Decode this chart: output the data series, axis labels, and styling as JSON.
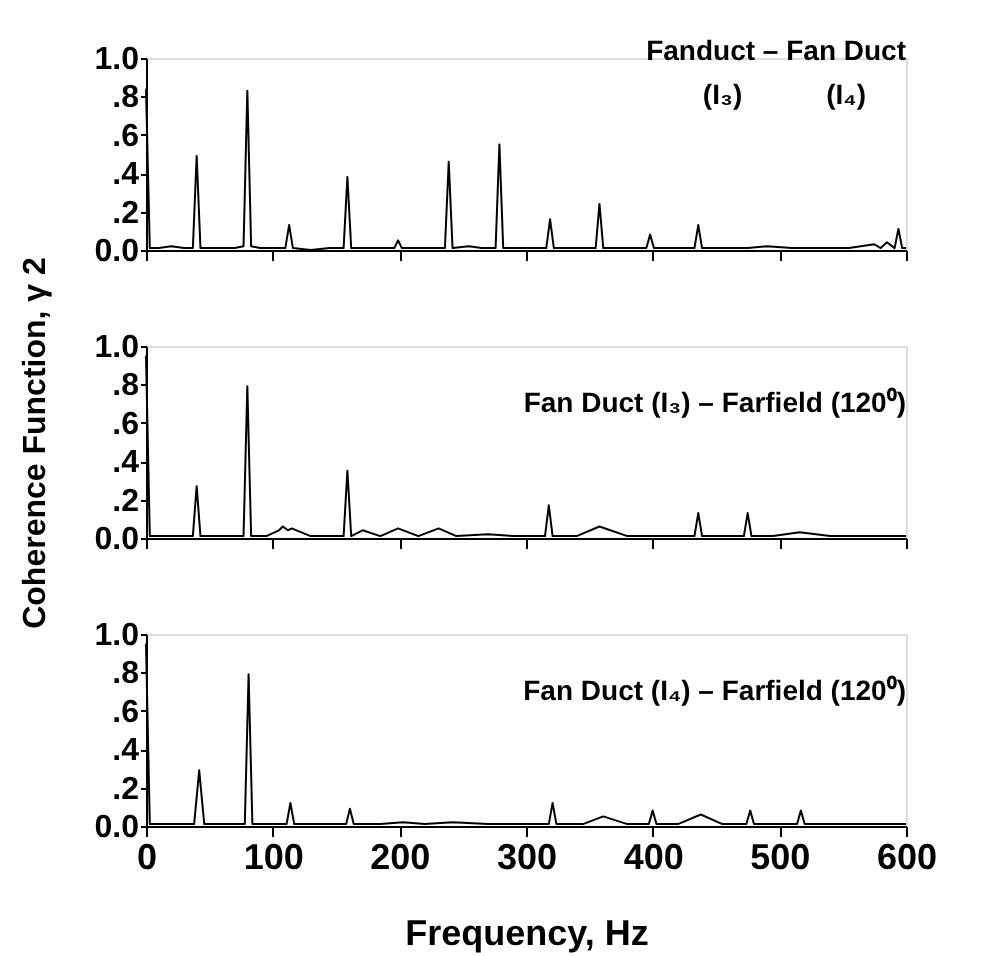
{
  "chart_data": [
    {
      "type": "line",
      "annotations": [
        "Fanduct – Fan Duct",
        "(I₃)      (I₄)"
      ],
      "x": [
        0,
        3,
        10,
        20,
        30,
        37,
        40,
        43,
        55,
        70,
        77,
        80,
        83,
        90,
        100,
        110,
        113,
        116,
        130,
        145,
        156,
        159,
        162,
        175,
        190,
        196,
        199,
        202,
        215,
        230,
        236,
        239,
        242,
        255,
        265,
        276,
        279,
        282,
        295,
        305,
        316,
        319,
        322,
        340,
        355,
        358,
        361,
        380,
        395,
        398,
        401,
        415,
        433,
        436,
        439,
        455,
        475,
        490,
        510,
        530,
        555,
        575,
        580,
        585,
        591,
        594,
        597,
        600
      ],
      "series": [
        {
          "color": "#000000",
          "values": [
            0.84,
            0.01,
            0.01,
            0.02,
            0.01,
            0.01,
            0.49,
            0.01,
            0.01,
            0.01,
            0.02,
            0.83,
            0.02,
            0.01,
            0.01,
            0.01,
            0.13,
            0.01,
            0,
            0.01,
            0.01,
            0.38,
            0.01,
            0.01,
            0.01,
            0.01,
            0.05,
            0.01,
            0.01,
            0.01,
            0.01,
            0.46,
            0.01,
            0.02,
            0.01,
            0.01,
            0.55,
            0.01,
            0.01,
            0.01,
            0.01,
            0.16,
            0.01,
            0.01,
            0.01,
            0.24,
            0.01,
            0.01,
            0.01,
            0.08,
            0.01,
            0.01,
            0.01,
            0.13,
            0.01,
            0.01,
            0.01,
            0.02,
            0.01,
            0.01,
            0.01,
            0.03,
            0.01,
            0.04,
            0.01,
            0.11,
            0.01,
            0.01
          ]
        }
      ],
      "xlim": [
        0,
        600
      ],
      "xticks": [
        0,
        100,
        200,
        300,
        400,
        500,
        600
      ],
      "ylim": [
        0,
        1
      ],
      "yticks": [
        {
          "value": 0,
          "label": "0.0"
        },
        {
          "value": 0.2,
          "label": ".2"
        },
        {
          "value": 0.4,
          "label": ".4"
        },
        {
          "value": 0.6,
          "label": ".6"
        },
        {
          "value": 0.8,
          "label": ".8"
        },
        {
          "value": 1,
          "label": "1.0"
        }
      ],
      "grid": false,
      "tick_labels": "y"
    },
    {
      "type": "line",
      "ylabel": "Coherence Function, γ 2",
      "annotations": [
        "Fan Duct (I₃) – Farfield (120⁰)"
      ],
      "x": [
        0,
        3,
        15,
        30,
        37,
        40,
        43,
        60,
        77,
        80,
        83,
        95,
        105,
        108,
        112,
        115,
        130,
        150,
        156,
        159,
        162,
        171,
        185,
        199,
        215,
        231,
        245,
        270,
        290,
        315,
        318,
        321,
        340,
        358,
        380,
        410,
        433,
        436,
        439,
        455,
        472,
        475,
        478,
        495,
        516,
        540,
        570,
        600
      ],
      "series": [
        {
          "color": "#000000",
          "values": [
            0.95,
            0.01,
            0.01,
            0.01,
            0.01,
            0.27,
            0.01,
            0.01,
            0.01,
            0.79,
            0.01,
            0.01,
            0.04,
            0.06,
            0.04,
            0.05,
            0.01,
            0.01,
            0.01,
            0.35,
            0.01,
            0.04,
            0.01,
            0.05,
            0.01,
            0.05,
            0.01,
            0.02,
            0.01,
            0.01,
            0.17,
            0.01,
            0.01,
            0.06,
            0.01,
            0.01,
            0.01,
            0.13,
            0.01,
            0.01,
            0.01,
            0.13,
            0.01,
            0.01,
            0.03,
            0.01,
            0.01,
            0.01
          ]
        }
      ],
      "xlim": [
        0,
        600
      ],
      "xticks": [
        0,
        100,
        200,
        300,
        400,
        500,
        600
      ],
      "ylim": [
        0,
        1
      ],
      "yticks": [
        {
          "value": 0,
          "label": "0.0"
        },
        {
          "value": 0.2,
          "label": ".2"
        },
        {
          "value": 0.4,
          "label": ".4"
        },
        {
          "value": 0.6,
          "label": ".6"
        },
        {
          "value": 0.8,
          "label": ".8"
        },
        {
          "value": 1,
          "label": "1.0"
        }
      ],
      "grid": false,
      "tick_labels": "y"
    },
    {
      "type": "line",
      "xlabel": "Frequency, Hz",
      "annotations": [
        "Fan Duct (I₄) – Farfield (120⁰)"
      ],
      "x": [
        0,
        3,
        20,
        38,
        42,
        46,
        60,
        78,
        81,
        84,
        100,
        111,
        114,
        117,
        140,
        158,
        161,
        164,
        185,
        203,
        220,
        242,
        270,
        300,
        318,
        321,
        324,
        345,
        361,
        380,
        397,
        400,
        403,
        420,
        438,
        455,
        474,
        477,
        480,
        500,
        514,
        517,
        520,
        545,
        575,
        600
      ],
      "series": [
        {
          "color": "#000000",
          "values": [
            0.95,
            0.01,
            0.01,
            0.01,
            0.29,
            0.01,
            0.01,
            0.01,
            0.79,
            0.01,
            0.01,
            0.01,
            0.12,
            0.01,
            0.01,
            0.01,
            0.09,
            0.01,
            0.01,
            0.02,
            0.01,
            0.02,
            0.01,
            0.01,
            0.01,
            0.12,
            0.01,
            0.01,
            0.05,
            0.01,
            0.01,
            0.08,
            0.01,
            0.01,
            0.06,
            0.01,
            0.01,
            0.08,
            0.01,
            0.01,
            0.01,
            0.08,
            0.01,
            0.01,
            0.01,
            0.01
          ]
        }
      ],
      "xlim": [
        0,
        600
      ],
      "xticks": [
        0,
        100,
        200,
        300,
        400,
        500,
        600
      ],
      "ylim": [
        0,
        1
      ],
      "yticks": [
        {
          "value": 0,
          "label": "0.0"
        },
        {
          "value": 0.2,
          "label": ".2"
        },
        {
          "value": 0.4,
          "label": ".4"
        },
        {
          "value": 0.6,
          "label": ".6"
        },
        {
          "value": 0.8,
          "label": ".8"
        },
        {
          "value": 1,
          "label": "1.0"
        }
      ],
      "grid": false
    }
  ]
}
